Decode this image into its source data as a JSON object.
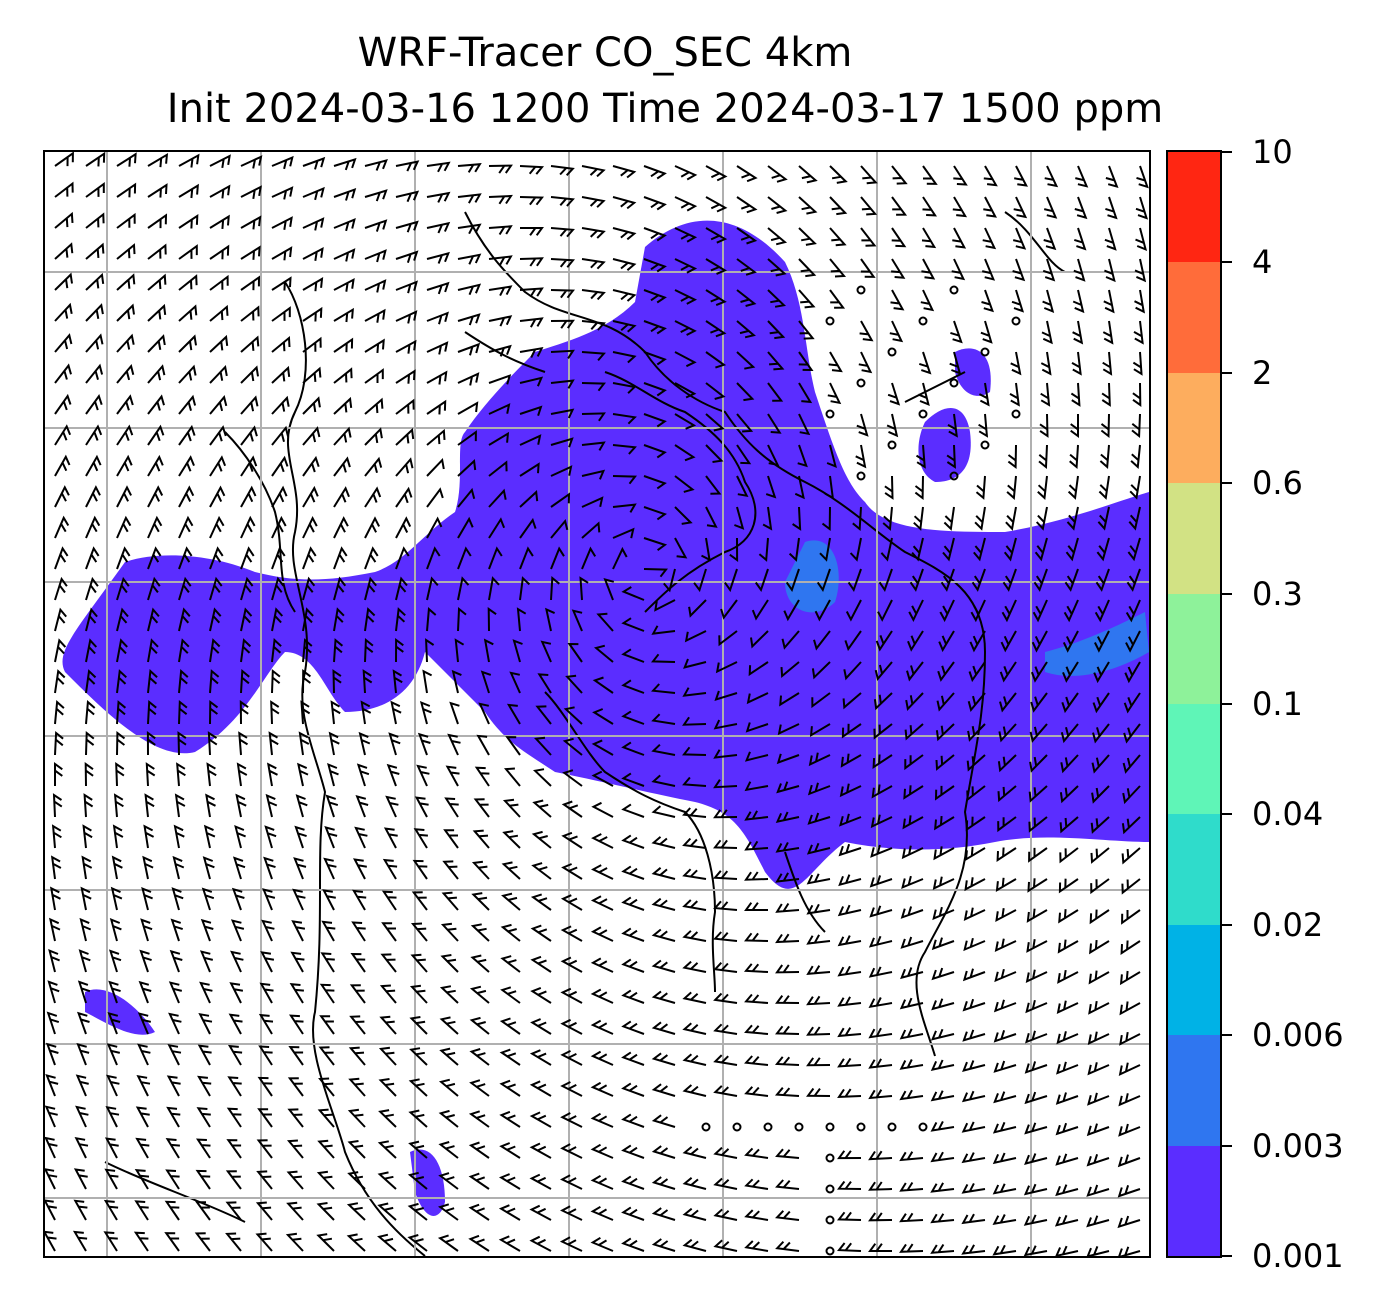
{
  "title": {
    "line1": "WRF-Tracer CO_SEC 4km",
    "line2": "Init 2024-03-16 1200 Time 2024-03-17 1500 ppm"
  },
  "map": {
    "variable": "CO_SEC tracer",
    "units": "ppm",
    "overlay": "wind barbs",
    "gridlines": true,
    "fill_color_dominant": "#5b2dff"
  },
  "colorbar": {
    "levels": [
      "0.001",
      "0.003",
      "0.006",
      "0.02",
      "0.04",
      "0.1",
      "0.3",
      "0.6",
      "2",
      "4",
      "10"
    ],
    "colors": [
      "#5b2dff",
      "#2f76f0",
      "#00b2e6",
      "#2fdccb",
      "#5ff5b7",
      "#8ef29a",
      "#d2e284",
      "#fdad5e",
      "#ff6c3a",
      "#ff2612"
    ]
  }
}
